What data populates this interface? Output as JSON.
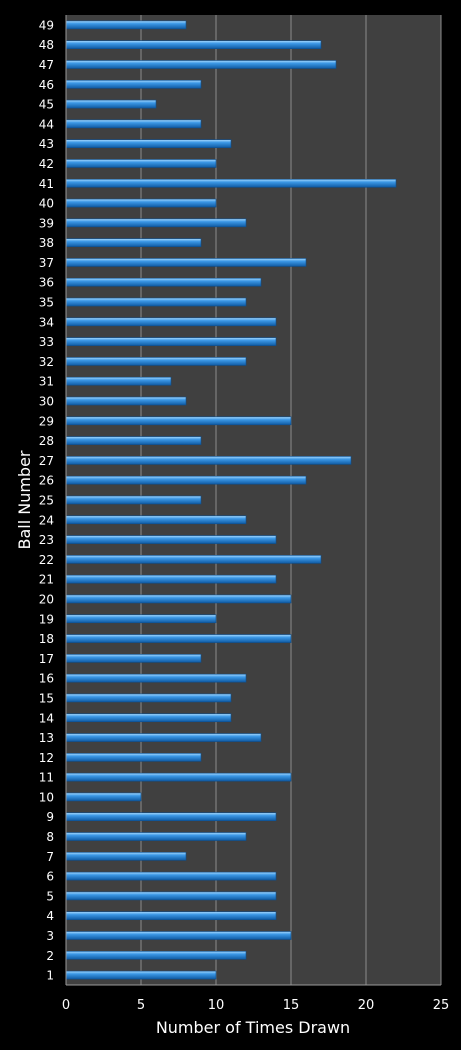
{
  "chart_data": {
    "type": "bar",
    "orientation": "horizontal",
    "title": "",
    "xlabel": "Number of Times Drawn",
    "ylabel": "Ball Number",
    "xlim": [
      0,
      25
    ],
    "xticks": [
      0,
      5,
      10,
      15,
      20,
      25
    ],
    "grid": true,
    "legend": "none",
    "colors": {
      "background": "#000000",
      "plot_area": "#404040",
      "grid": "#8c8c8c",
      "bar": "#2a86d8",
      "bar_highlight": "#9ad0ff",
      "bar_shadow": "#0e4f8e"
    },
    "categories": [
      "1",
      "2",
      "3",
      "4",
      "5",
      "6",
      "7",
      "8",
      "9",
      "10",
      "11",
      "12",
      "13",
      "14",
      "15",
      "16",
      "17",
      "18",
      "19",
      "20",
      "21",
      "22",
      "23",
      "24",
      "25",
      "26",
      "27",
      "28",
      "29",
      "30",
      "31",
      "32",
      "33",
      "34",
      "35",
      "36",
      "37",
      "38",
      "39",
      "40",
      "41",
      "42",
      "43",
      "44",
      "45",
      "46",
      "47",
      "48",
      "49"
    ],
    "values": [
      10,
      12,
      15,
      14,
      14,
      14,
      8,
      12,
      14,
      5,
      15,
      9,
      13,
      11,
      11,
      12,
      9,
      15,
      10,
      15,
      14,
      17,
      14,
      12,
      9,
      16,
      19,
      9,
      15,
      8,
      7,
      12,
      14,
      14,
      12,
      13,
      16,
      9,
      12,
      10,
      22,
      10,
      11,
      9,
      6,
      9,
      18,
      17,
      8
    ]
  }
}
